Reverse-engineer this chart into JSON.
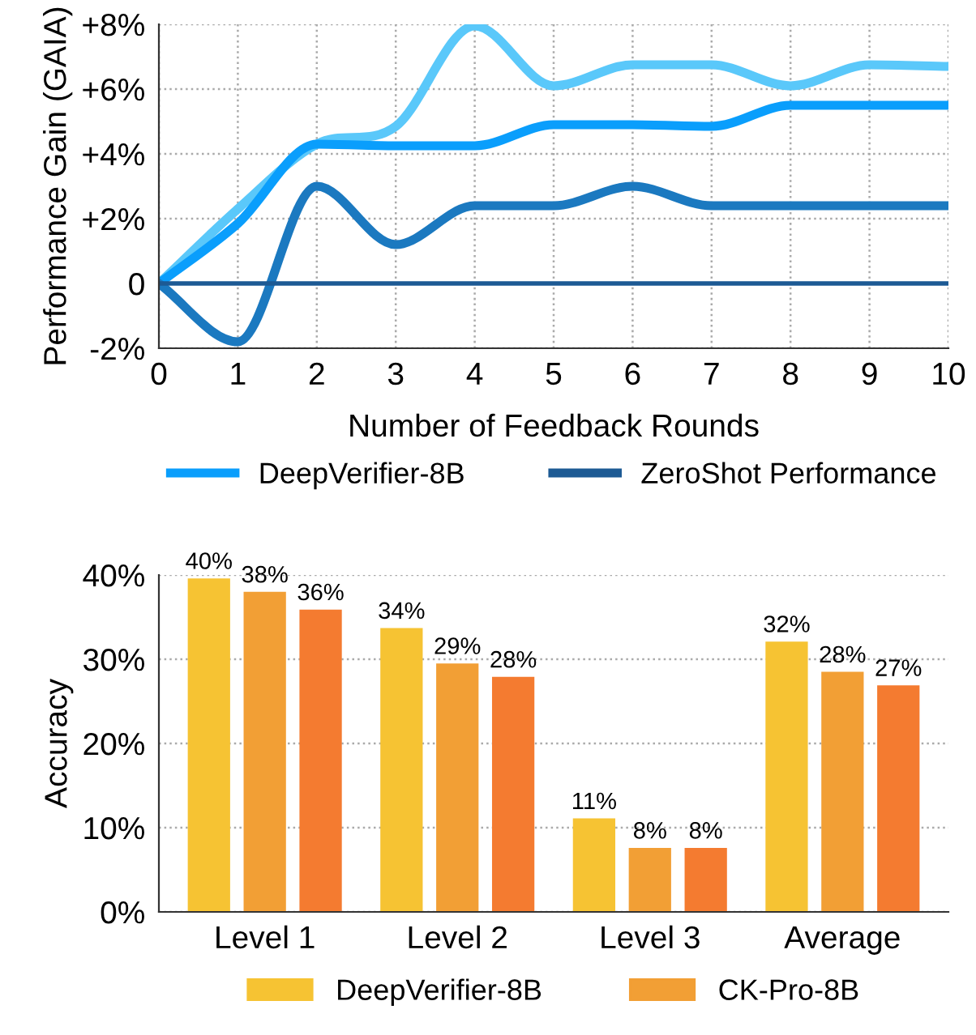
{
  "chart_data": [
    {
      "type": "line",
      "xlabel": "Number of Feedback Rounds",
      "ylabel": "Performance Gain (GAIA)",
      "x": [
        0,
        1,
        2,
        3,
        4,
        5,
        6,
        7,
        8,
        9,
        10
      ],
      "series": [
        {
          "color": "#5ac8fa",
          "values": [
            0,
            2.3,
            4.3,
            4.85,
            7.95,
            6.1,
            6.75,
            6.75,
            6.1,
            6.75,
            6.7
          ]
        },
        {
          "name": "DeepVerifier-8B",
          "color": "#0a9efc",
          "values": [
            0,
            1.85,
            4.3,
            4.25,
            4.25,
            4.9,
            4.9,
            4.85,
            5.5,
            5.5,
            5.5
          ]
        },
        {
          "color": "#1b79c0",
          "values": [
            0,
            -1.8,
            3.0,
            1.2,
            2.4,
            2.4,
            3.0,
            2.4,
            2.4,
            2.4,
            2.4
          ]
        },
        {
          "name": "ZeroShot Performance",
          "color": "#1d5a94",
          "values": [
            0,
            0,
            0,
            0,
            0,
            0,
            0,
            0,
            0,
            0,
            0
          ]
        }
      ],
      "xlim": [
        0,
        10
      ],
      "xticks": [
        0,
        1,
        2,
        3,
        4,
        5,
        6,
        7,
        8,
        9,
        10
      ],
      "ylim": [
        -2,
        8
      ],
      "yticks": [
        {
          "value": -2,
          "label": "-2%"
        },
        0,
        {
          "value": 2,
          "label": "+2%"
        },
        {
          "value": 4,
          "label": "+4%"
        },
        {
          "value": 6,
          "label": "+6%"
        },
        {
          "value": 8,
          "label": "+8%"
        }
      ],
      "grid": true,
      "legend": "bottom"
    },
    {
      "type": "bar",
      "ylabel": "Accuracy",
      "categories": [
        "Level 1",
        "Level 2",
        "Level 3",
        "Average"
      ],
      "series": [
        {
          "name": "DeepVerifier-8B",
          "color": "#f6c333",
          "values": [
            39.6,
            33.7,
            11.1,
            32.1
          ],
          "value_labels": [
            "40%",
            "34%",
            "11%",
            "32%"
          ]
        },
        {
          "name": "CK-Pro-8B",
          "color": "#f29f35",
          "values": [
            38.0,
            29.5,
            7.6,
            28.5
          ],
          "value_labels": [
            "38%",
            "29%",
            "8%",
            "28%"
          ]
        },
        {
          "color": "#f47b30",
          "values": [
            35.9,
            27.9,
            7.6,
            26.9
          ],
          "value_labels": [
            "36%",
            "28%",
            "8%",
            "27%"
          ]
        }
      ],
      "ylim": [
        0,
        40
      ],
      "yticks": [
        {
          "value": 0,
          "label": "0%"
        },
        {
          "value": 10,
          "label": "10%"
        },
        {
          "value": 20,
          "label": "20%"
        },
        {
          "value": 30,
          "label": "30%"
        },
        {
          "value": 40,
          "label": "40%"
        }
      ],
      "grid": "y",
      "legend": "bottom"
    }
  ]
}
